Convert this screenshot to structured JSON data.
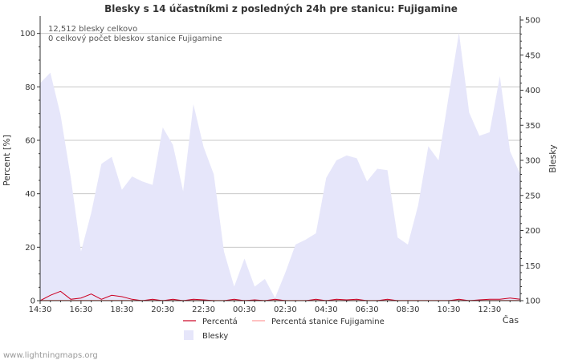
{
  "chart_data": {
    "type": "area",
    "title": "Blesky s 14 účastníkmi z posledných 24h pre stanicu: Fujigamine",
    "annotations": [
      "12,512 blesky celkovo",
      "0 celkový počet bleskov stanice Fujigamine"
    ],
    "xlabel": "Čas",
    "ylabel_left": "Percent   [%]",
    "ylabel_right": "Blesky",
    "y_left_ticks": [
      0,
      20,
      40,
      60,
      80,
      100
    ],
    "y_right_ticks": [
      100,
      150,
      200,
      250,
      300,
      350,
      400,
      450,
      500
    ],
    "ylim_left": [
      0,
      105
    ],
    "ylim_right": [
      100,
      500
    ],
    "x_tick_labels": [
      "14:30",
      "16:30",
      "18:30",
      "20:30",
      "22:30",
      "00:30",
      "02:30",
      "04:30",
      "06:30",
      "08:30",
      "10:30",
      "12:30"
    ],
    "x_tick_hours": [
      0,
      2,
      4,
      6,
      8,
      10,
      12,
      14,
      16,
      18,
      20,
      22
    ],
    "x_range_hours": [
      0,
      23.5
    ],
    "legend": [
      {
        "name": "Percentá",
        "color": "#cc0022",
        "kind": "line"
      },
      {
        "name": "Percentá stanice Fujigamine",
        "color": "#ff9999",
        "kind": "line"
      },
      {
        "name": "Blesky",
        "color": "#e6e6fa",
        "kind": "area"
      }
    ],
    "series": [
      {
        "name": "Blesky",
        "axis": "right",
        "x": [
          0,
          0.5,
          1,
          1.5,
          2,
          2.5,
          3,
          3.5,
          4,
          4.5,
          5,
          5.5,
          6,
          6.5,
          7,
          7.5,
          8,
          8.5,
          9,
          9.5,
          10,
          10.5,
          11,
          11.5,
          12,
          12.5,
          13,
          13.5,
          14,
          14.5,
          15,
          15.5,
          16,
          16.5,
          17,
          17.5,
          18,
          18.5,
          19,
          19.5,
          20,
          20.5,
          21,
          21.5,
          22,
          22.5,
          23,
          23.5
        ],
        "values": [
          410,
          425,
          365,
          275,
          170,
          225,
          295,
          305,
          258,
          277,
          270,
          265,
          347,
          322,
          256,
          380,
          319,
          280,
          170,
          120,
          160,
          120,
          131,
          104,
          140,
          180,
          187,
          196,
          275,
          300,
          307,
          303,
          270,
          288,
          286,
          190,
          180,
          236,
          320,
          300,
          392,
          482,
          368,
          335,
          340,
          420,
          313,
          280
        ]
      },
      {
        "name": "Percentá",
        "axis": "left",
        "x": [
          0,
          0.5,
          1,
          1.5,
          2,
          2.5,
          3,
          3.5,
          4,
          4.5,
          5,
          5.5,
          6,
          6.5,
          7,
          7.5,
          8,
          8.5,
          9,
          9.5,
          10,
          10.5,
          11,
          11.5,
          12,
          12.5,
          13,
          13.5,
          14,
          14.5,
          15,
          15.5,
          16,
          16.5,
          17,
          17.5,
          18,
          18.5,
          19,
          19.5,
          20,
          20.5,
          21,
          21.5,
          22,
          22.5,
          23,
          23.5
        ],
        "values": [
          0,
          2,
          3.5,
          0.5,
          1,
          2.5,
          0.5,
          2,
          1.5,
          0.5,
          0,
          0.5,
          0,
          0.5,
          0,
          0.5,
          0.3,
          0,
          0,
          0.5,
          0,
          0.3,
          0,
          0.5,
          0,
          0,
          0,
          0.5,
          0,
          0.5,
          0.3,
          0.5,
          0,
          0,
          0.5,
          0,
          0,
          0,
          0,
          0,
          0,
          0.5,
          0,
          0.3,
          0.5,
          0.5,
          1,
          0.5
        ]
      },
      {
        "name": "Percentá stanice Fujigamine",
        "axis": "left",
        "x": [
          0,
          23.5
        ],
        "values": [
          0,
          0
        ]
      }
    ],
    "grid": true,
    "legend_position": "bottom-center"
  },
  "footer": {
    "credit": "www.lightningmaps.org"
  },
  "colors": {
    "area_fill": "#e6e6fa",
    "percent_line": "#cc0022",
    "station_line": "#ff9999",
    "grid": "#c8c8c8",
    "axis": "#333333",
    "text": "#333333"
  }
}
